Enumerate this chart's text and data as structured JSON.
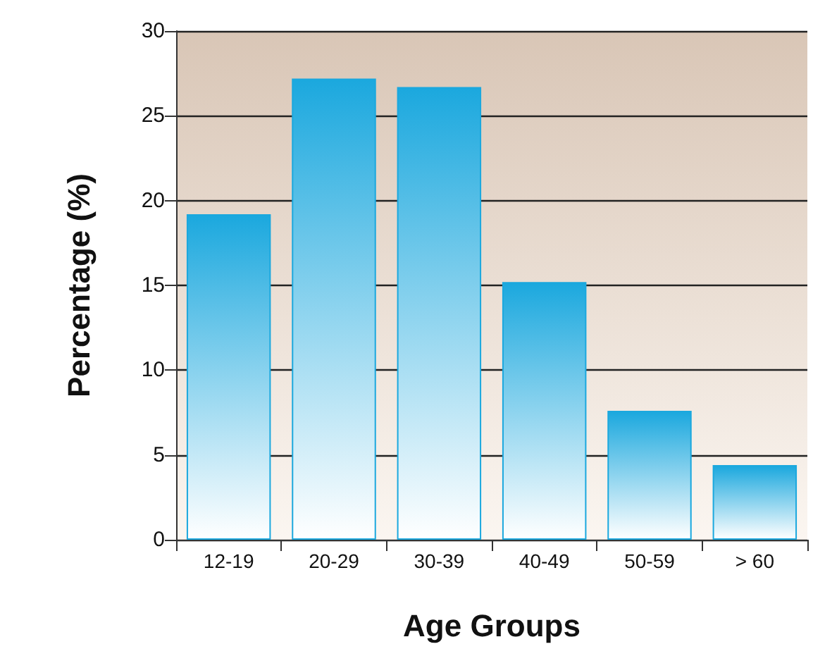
{
  "chart_data": {
    "type": "bar",
    "xlabel": "Age Groups",
    "ylabel": "Percentage (%)",
    "categories": [
      "12-19",
      "20-29",
      "30-39",
      "40-49",
      "50-59",
      "> 60"
    ],
    "values": [
      19.2,
      27.2,
      26.7,
      15.2,
      7.6,
      4.4
    ],
    "color": "#1ba8de",
    "ylim": [
      0,
      30
    ],
    "yticks": [
      0,
      5,
      10,
      15,
      20,
      25,
      30
    ],
    "grid": "y"
  }
}
